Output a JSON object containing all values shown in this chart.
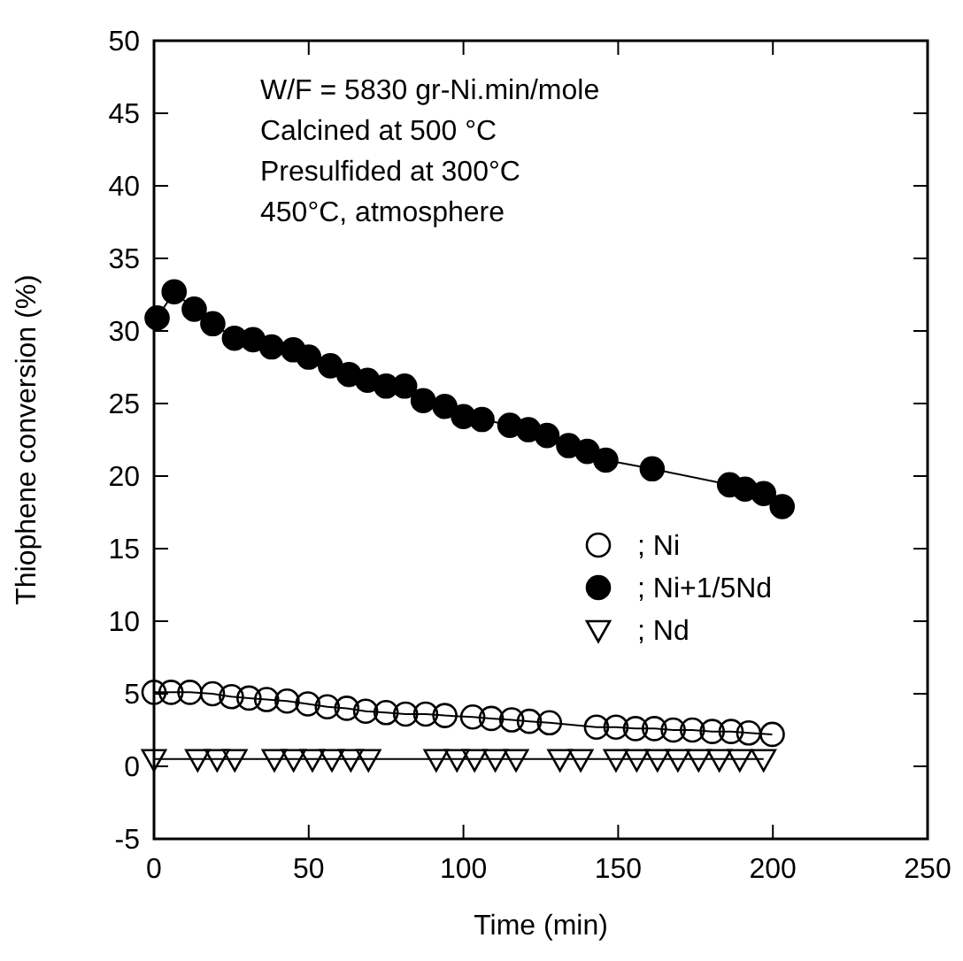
{
  "chart_data": {
    "type": "line",
    "xlabel": "Time (min)",
    "ylabel": "Thiophene conversion (%)",
    "annotations": [
      "W/F = 5830 gr-Ni.min/mole",
      "Calcined at 500 °C",
      "Presulfided at 300°C",
      "450°C, atmosphere"
    ],
    "xlim": [
      0,
      250
    ],
    "xticks": [
      0,
      50,
      100,
      150,
      200,
      250
    ],
    "ylim": [
      -5,
      50
    ],
    "yticks": [
      -5,
      0,
      5,
      10,
      15,
      20,
      25,
      30,
      35,
      40,
      45,
      50
    ],
    "grid": false,
    "legend": "right",
    "line_style": "solid",
    "series": [
      {
        "name": "; Ni",
        "color": "#000000",
        "marker": "circle-open",
        "x": [
          0,
          5.5,
          11.6,
          18.9,
          25,
          30.7,
          36.4,
          43,
          49.7,
          56,
          62.3,
          68.4,
          75,
          81.3,
          87.8,
          94,
          103,
          109,
          115.6,
          121.3,
          127.8,
          143,
          149.3,
          155.6,
          161.7,
          167.8,
          174,
          180.4,
          186.5,
          192.2,
          199.8
        ],
        "values": [
          5.1,
          5.1,
          5.1,
          5.0,
          4.8,
          4.7,
          4.6,
          4.5,
          4.3,
          4.1,
          4.0,
          3.8,
          3.7,
          3.6,
          3.6,
          3.5,
          3.4,
          3.3,
          3.2,
          3.1,
          3.0,
          2.7,
          2.7,
          2.6,
          2.6,
          2.5,
          2.5,
          2.4,
          2.4,
          2.3,
          2.2
        ]
      },
      {
        "name": "; Ni+1/5Nd",
        "color": "#000000",
        "marker": "circle",
        "x": [
          1,
          6.5,
          13,
          19,
          26,
          32,
          38,
          45,
          50,
          57,
          63,
          69,
          75,
          81,
          87,
          94,
          100,
          106,
          115,
          121,
          127,
          134,
          140,
          146,
          161,
          186,
          191,
          197,
          203
        ],
        "values": [
          30.9,
          32.7,
          31.5,
          30.5,
          29.5,
          29.4,
          28.9,
          28.7,
          28.2,
          27.6,
          27.0,
          26.6,
          26.2,
          26.2,
          25.2,
          24.8,
          24.1,
          23.9,
          23.5,
          23.2,
          22.8,
          22.1,
          21.7,
          21.1,
          20.5,
          19.4,
          19.1,
          18.8,
          17.9
        ]
      },
      {
        "name": "; Nd",
        "color": "#000000",
        "marker": "triangle-open",
        "x": [
          0,
          14.1,
          20.4,
          26.1,
          38.9,
          45.1,
          51.2,
          57.5,
          63.6,
          69.3,
          91.2,
          97.9,
          103.6,
          110.3,
          117,
          131.2,
          137.9,
          149.3,
          156,
          162.7,
          169.3,
          176,
          182.7,
          189.3,
          197
        ],
        "values": [
          0.5,
          0.5,
          0.5,
          0.5,
          0.5,
          0.5,
          0.5,
          0.5,
          0.5,
          0.5,
          0.5,
          0.5,
          0.5,
          0.5,
          0.5,
          0.5,
          0.5,
          0.5,
          0.5,
          0.5,
          0.5,
          0.5,
          0.5,
          0.5,
          0.5
        ]
      }
    ]
  }
}
